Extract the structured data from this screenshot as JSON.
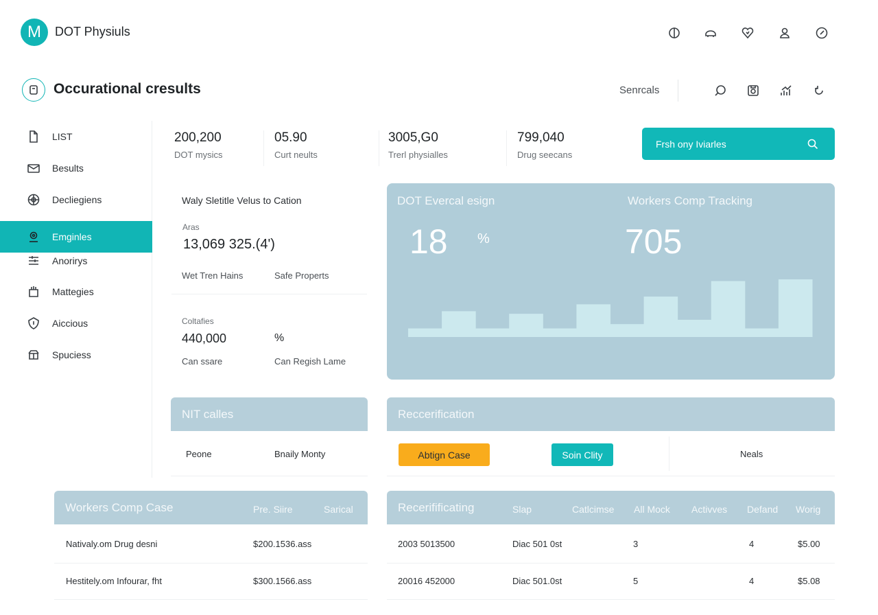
{
  "app": {
    "logo_letter": "M",
    "title": "DOT Physiuls"
  },
  "header_icons": [
    "moon-icon",
    "cloud-icon",
    "heart-icon",
    "user-icon",
    "compass-icon"
  ],
  "page": {
    "title": "Occurational cresults",
    "search_label": "Senrcals"
  },
  "toolbar_icons": [
    "search-icon",
    "save-icon",
    "chart-icon",
    "refresh-icon"
  ],
  "sidebar": {
    "items": [
      {
        "label": "LIST",
        "icon": "document-icon"
      },
      {
        "label": "Besults",
        "icon": "inbox-icon"
      },
      {
        "label": "Decliegiens",
        "icon": "globe-icon"
      },
      {
        "label": "Emginles",
        "icon": "location-icon",
        "active": true
      },
      {
        "label": "Anorirys",
        "icon": "list-icon"
      },
      {
        "label": "Mattegies",
        "icon": "bag-icon"
      },
      {
        "label": "Aiccious",
        "icon": "shield-icon"
      },
      {
        "label": "Spuciess",
        "icon": "gift-icon"
      }
    ]
  },
  "stats": [
    {
      "value": "200,200",
      "label": "DOT mysics"
    },
    {
      "value": "05.90",
      "label": "Curt neults"
    },
    {
      "value": "3005,G0",
      "label": "Trerl physialles"
    },
    {
      "value": "799,040",
      "label": "Drug seecans"
    }
  ],
  "primary_button": {
    "label": "Frsh ony Iviarles"
  },
  "info": {
    "title": "Waly Sletitle Velus to Cation",
    "area_label": "Aras",
    "area_value": "13,069  325.(4')",
    "left_note": "Wet Tren Hains",
    "right_note": "Safe Properts",
    "coll_label": "Coltafies",
    "coll_value": "440,000",
    "coll_pct": "%",
    "foot_left": "Can ssare",
    "foot_right": "Can Regish Lame"
  },
  "chart_card": {
    "left_title": "DOT Evercal esign",
    "left_value": "18",
    "left_unit": "%",
    "right_title": "Workers Comp Tracking",
    "right_value": "705"
  },
  "chart_data": {
    "type": "area",
    "values": [
      1,
      3,
      1,
      2.7,
      1,
      3.8,
      1.5,
      4.7,
      2,
      6.5,
      1,
      6.7
    ],
    "color": "#cce9ee"
  },
  "nit_panel": {
    "title": "NIT calles",
    "col1": "Peone",
    "col2": "Bnaily Monty"
  },
  "recert_panel": {
    "title": "Reccerification",
    "badge_orange": "Abtign Case",
    "badge_teal": "Soin Clity",
    "right_label": "Neals"
  },
  "workers_table": {
    "title": "Workers Comp Case",
    "headers": [
      "Pre. Siire",
      "Sarical"
    ],
    "rows": [
      {
        "name": "Nativaly.om Drug desni",
        "value": "$200.1536.ass"
      },
      {
        "name": "Hestitely.om Infourar, fht",
        "value": "$300.1566.ass"
      }
    ]
  },
  "recert_table": {
    "title": "Recerifificating",
    "headers": [
      "Slap",
      "Catlcimse",
      "All Mock",
      "Activves",
      "Defand",
      "Worig"
    ],
    "rows": [
      {
        "id": "2003 5013500",
        "code": "Diac 501 0st",
        "a": "3",
        "b": "4",
        "amount": "$5.00"
      },
      {
        "id": "20016 452000",
        "code": "Diac 501.0st",
        "a": "5",
        "b": "4",
        "amount": "$5.08"
      }
    ]
  },
  "colors": {
    "accent": "#11b5b5",
    "panel": "#b6cfda",
    "warning": "#f9ac1c"
  }
}
